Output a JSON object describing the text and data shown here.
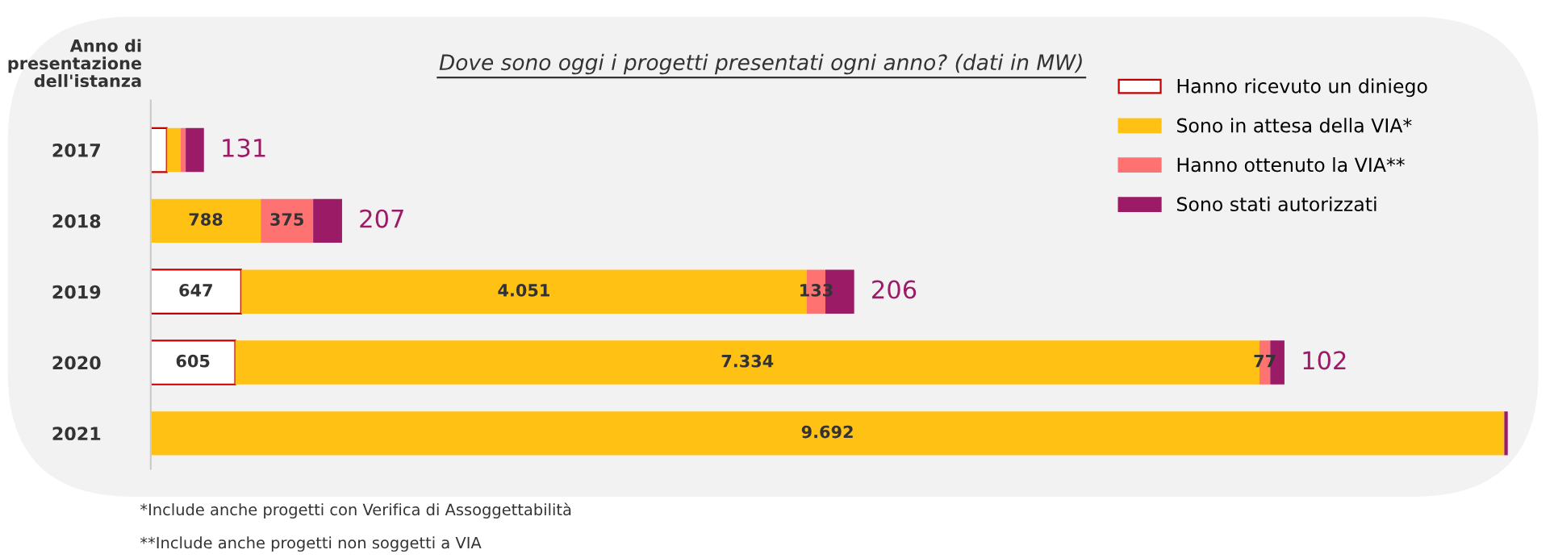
{
  "chart_data": {
    "type": "bar",
    "orientation": "horizontal",
    "stacked": true,
    "title": "Dove sono oggi i progetti presentati ogni anno? (dati in MW)",
    "ylabel": "Anno di\npresentazione\ndell'istanza",
    "categories": [
      "2017",
      "2018",
      "2019",
      "2020",
      "2021"
    ],
    "series": [
      {
        "name": "Hanno ricevuto un diniego",
        "color": "#ffffff",
        "values": [
          115,
          0,
          647,
          605,
          0
        ],
        "value_labels": [
          null,
          null,
          "647",
          "605",
          null
        ]
      },
      {
        "name": "Sono in attesa della VIA*",
        "color": "#ffc114",
        "values": [
          100,
          788,
          4051,
          7334,
          9692
        ],
        "value_labels": [
          null,
          "788",
          "4.051",
          "7.334",
          "9.692"
        ]
      },
      {
        "name": "Hanno ottenuto la VIA**",
        "color": "#ff7272",
        "values": [
          35,
          375,
          133,
          77,
          0
        ],
        "value_labels": [
          null,
          "375",
          "133",
          "77",
          null
        ]
      },
      {
        "name": "Sono stati autorizzati",
        "color": "#9b1b66",
        "values": [
          131,
          207,
          206,
          102,
          25
        ],
        "value_labels": [
          "131",
          "207",
          "206",
          "102",
          null
        ]
      }
    ],
    "legend": "top right",
    "annotations": [
      "*Include anche progetti con Verifica di Assoggettabilità",
      "**Include anche progetti non soggetti a VIA"
    ]
  }
}
